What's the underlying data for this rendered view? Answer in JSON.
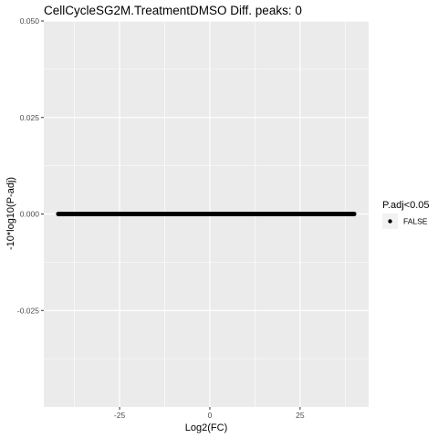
{
  "chart_data": {
    "type": "scatter",
    "title": "CellCycleSG2M.TreatmentDMSO Diff. peaks: 0",
    "xlabel": "Log2(FC)",
    "ylabel": "-10*log10(P-adj)",
    "xlim": [
      -46,
      44
    ],
    "ylim": [
      -0.05,
      0.05
    ],
    "x_ticks": [
      -25,
      0,
      25
    ],
    "x_tick_labels": [
      "-25",
      "0",
      "25"
    ],
    "y_ticks": [
      -0.025,
      0.0,
      0.025,
      0.05
    ],
    "y_tick_labels": [
      "-0.025",
      "0.000",
      "0.025",
      "0.050"
    ],
    "grid": true,
    "legend": {
      "title": "P.adj<0.05",
      "placement": "right",
      "entries": [
        {
          "label": "FALSE",
          "color": "#000000"
        }
      ]
    },
    "series": [
      {
        "name": "FALSE",
        "color": "#000000",
        "x_range": [
          -42,
          40
        ],
        "y": 0
      }
    ]
  },
  "colors": {
    "panel_bg": "#ebebeb",
    "grid_major": "#ffffff",
    "point": "#000000"
  }
}
